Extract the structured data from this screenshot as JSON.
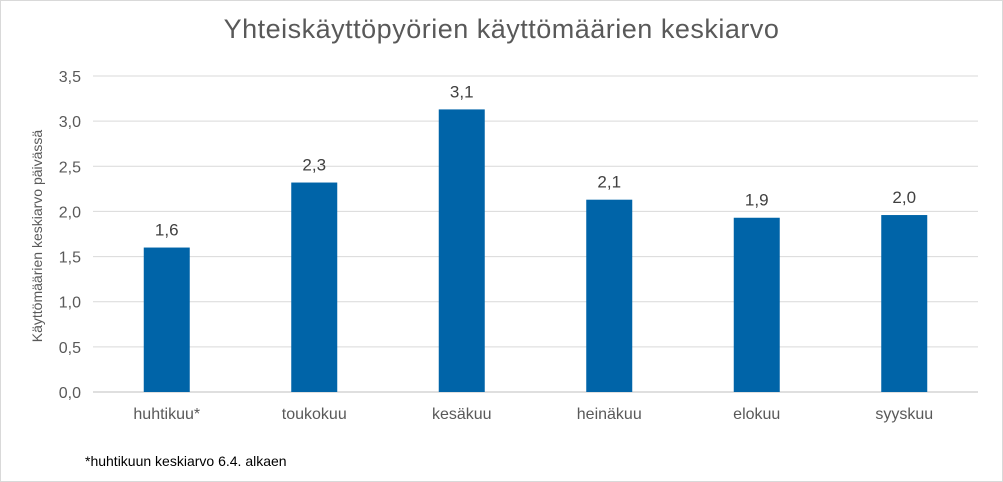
{
  "chart_data": {
    "type": "bar",
    "title": "Yhteiskäyttöpyörien käyttömäärien keskiarvo",
    "ylabel": "Käyttömäärien keskiarvo päivässä",
    "xlabel": "",
    "categories": [
      "huhtikuu*",
      "toukokuu",
      "kesäkuu",
      "heinäkuu",
      "elokuu",
      "syyskuu"
    ],
    "values": [
      1.6,
      2.32,
      3.13,
      2.13,
      1.93,
      1.96
    ],
    "data_labels": [
      "1,6",
      "2,3",
      "3,1",
      "2,1",
      "1,9",
      "2,0"
    ],
    "ylim": [
      0,
      3.5
    ],
    "yticks": [
      0,
      0.5,
      1.0,
      1.5,
      2.0,
      2.5,
      3.0,
      3.5
    ],
    "ytick_labels": [
      "0,0",
      "0,5",
      "1,0",
      "1,5",
      "2,0",
      "2,5",
      "3,0",
      "3,5"
    ],
    "bar_color": "#0064a8",
    "grid": true,
    "legend": "none"
  },
  "footnote": "*huhtikuun keskiarvo 6.4. alkaen"
}
